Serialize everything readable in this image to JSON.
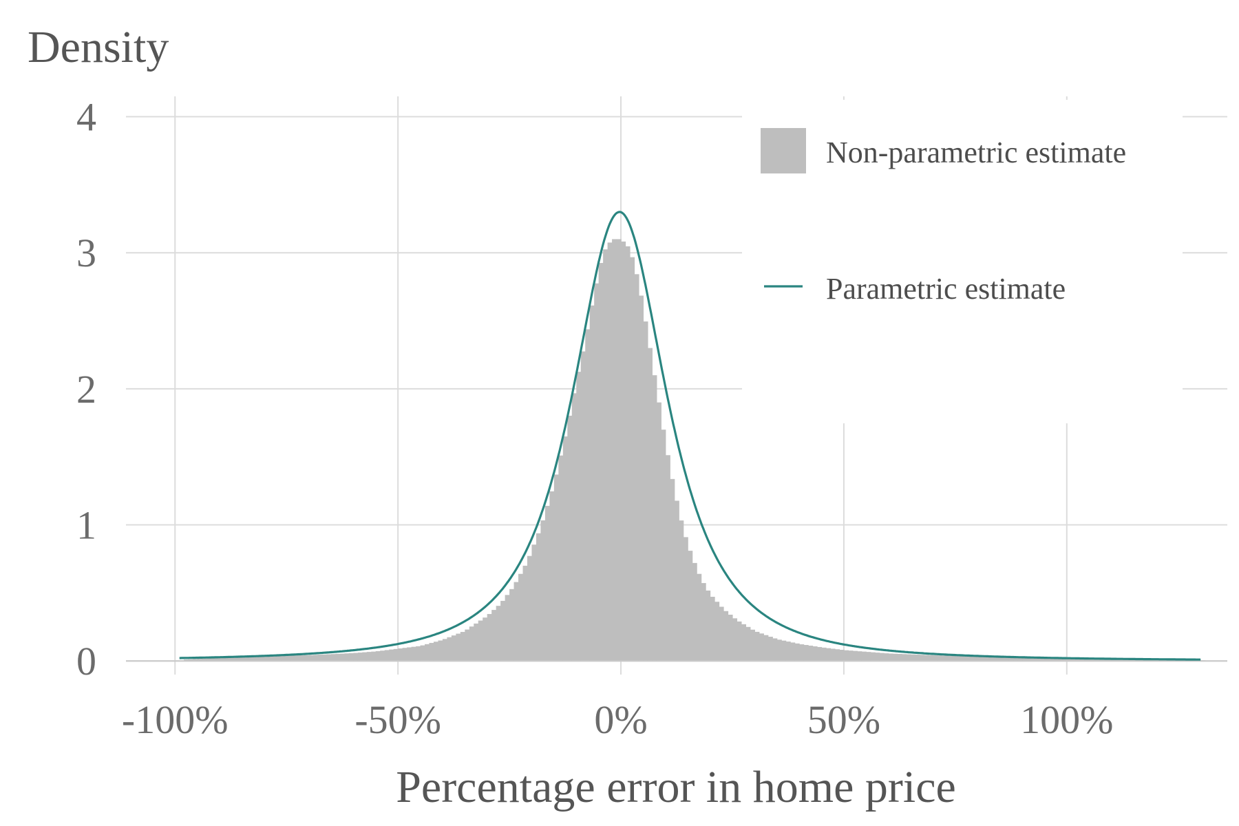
{
  "chart_data": {
    "type": "bar",
    "title": "",
    "ylabel": "Density",
    "xlabel": "Percentage error in home price",
    "xlim": [
      -111,
      136
    ],
    "ylim": [
      -0.1,
      4.2
    ],
    "x_ticks": [
      {
        "value": -100,
        "label": "-100%"
      },
      {
        "value": -50,
        "label": "-50%"
      },
      {
        "value": 0,
        "label": "0%"
      },
      {
        "value": 50,
        "label": "50%"
      },
      {
        "value": 100,
        "label": "100%"
      }
    ],
    "y_ticks": [
      {
        "value": 0,
        "label": "0"
      },
      {
        "value": 1,
        "label": "1"
      },
      {
        "value": 2,
        "label": "2"
      },
      {
        "value": 3,
        "label": "3"
      },
      {
        "value": 4,
        "label": "4"
      }
    ],
    "grid": true,
    "legend_position": "top-right",
    "colors": {
      "histogram": "#bebebe",
      "curve": "#2a8580",
      "grid": "#dcdcdc",
      "baseline": "#c8c8c8"
    },
    "series": [
      {
        "name": "Non-parametric estimate",
        "kind": "histogram",
        "bin_width": 1,
        "points": [
          [
            -98,
            0.01
          ],
          [
            -95,
            0.015
          ],
          [
            -90,
            0.022
          ],
          [
            -85,
            0.03
          ],
          [
            -80,
            0.036
          ],
          [
            -75,
            0.04
          ],
          [
            -70,
            0.043
          ],
          [
            -65,
            0.05
          ],
          [
            -60,
            0.058
          ],
          [
            -55,
            0.07
          ],
          [
            -50,
            0.09
          ],
          [
            -45,
            0.11
          ],
          [
            -40,
            0.155
          ],
          [
            -35,
            0.22
          ],
          [
            -30,
            0.33
          ],
          [
            -27,
            0.42
          ],
          [
            -24,
            0.55
          ],
          [
            -21,
            0.73
          ],
          [
            -18,
            0.98
          ],
          [
            -15,
            1.3
          ],
          [
            -12,
            1.72
          ],
          [
            -10,
            2.05
          ],
          [
            -8,
            2.35
          ],
          [
            -6,
            2.7
          ],
          [
            -4,
            3.0
          ],
          [
            -2,
            3.1
          ],
          [
            0,
            3.1
          ],
          [
            2,
            3.03
          ],
          [
            4,
            2.78
          ],
          [
            6,
            2.4
          ],
          [
            8,
            2.0
          ],
          [
            10,
            1.6
          ],
          [
            12,
            1.25
          ],
          [
            14,
            0.96
          ],
          [
            16,
            0.76
          ],
          [
            18,
            0.6
          ],
          [
            20,
            0.49
          ],
          [
            23,
            0.38
          ],
          [
            26,
            0.3
          ],
          [
            30,
            0.22
          ],
          [
            35,
            0.16
          ],
          [
            40,
            0.125
          ],
          [
            45,
            0.1
          ],
          [
            50,
            0.08
          ],
          [
            60,
            0.055
          ],
          [
            70,
            0.042
          ],
          [
            80,
            0.033
          ],
          [
            90,
            0.026
          ],
          [
            100,
            0.02
          ],
          [
            110,
            0.016
          ],
          [
            120,
            0.013
          ],
          [
            130,
            0.01
          ],
          [
            131,
            0.0
          ]
        ]
      },
      {
        "name": "Parametric estimate",
        "kind": "line",
        "location": -0.3,
        "scale": 9.6,
        "x_range": [
          -99,
          130
        ]
      }
    ]
  }
}
